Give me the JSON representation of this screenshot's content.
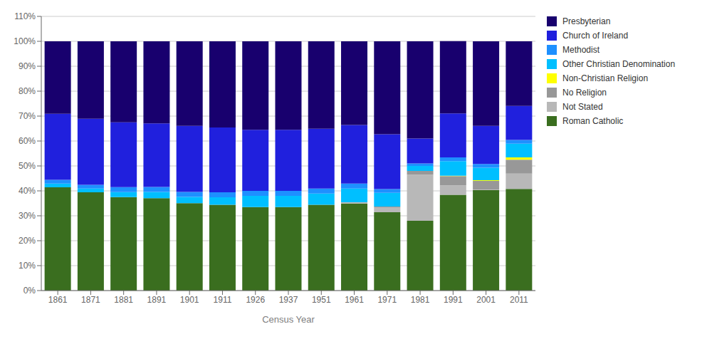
{
  "chart_data": {
    "type": "bar",
    "stacked": true,
    "xlabel": "Census Year",
    "categories": [
      "1861",
      "1871",
      "1881",
      "1891",
      "1901",
      "1911",
      "1926",
      "1937",
      "1951",
      "1961",
      "1971",
      "1981",
      "1991",
      "2001",
      "2011"
    ],
    "series": [
      {
        "name": "Roman Catholic",
        "color": "#3a6e1f",
        "values": [
          41.4,
          39.4,
          37.5,
          37.1,
          35.1,
          34.4,
          33.5,
          33.5,
          34.4,
          34.9,
          31.4,
          28.0,
          38.4,
          40.3,
          40.8
        ]
      },
      {
        "name": "Not Stated",
        "color": "#b8b8b8",
        "values": [
          0.0,
          0.0,
          0.0,
          0.0,
          0.0,
          0.0,
          0.0,
          0.0,
          0.0,
          0.5,
          2.0,
          18.5,
          3.8,
          0.2,
          6.1
        ]
      },
      {
        "name": "No Religion",
        "color": "#989898",
        "values": [
          0.0,
          0.0,
          0.0,
          0.0,
          0.0,
          0.0,
          0.0,
          0.0,
          0.0,
          0.0,
          0.3,
          1.5,
          3.7,
          3.5,
          5.6
        ]
      },
      {
        "name": "Non-Christian Religion",
        "color": "#ffff00",
        "values": [
          0.0,
          0.0,
          0.0,
          0.0,
          0.0,
          0.0,
          0.0,
          0.0,
          0.0,
          0.0,
          0.0,
          0.0,
          0.2,
          0.3,
          0.9
        ]
      },
      {
        "name": "Other Christian Denomination",
        "color": "#00bfff",
        "values": [
          1.5,
          1.5,
          2.0,
          2.5,
          2.5,
          3.0,
          4.5,
          4.5,
          4.5,
          5.5,
          5.5,
          2.0,
          5.8,
          5.0,
          5.5
        ]
      },
      {
        "name": "Methodist",
        "color": "#1e90ff",
        "values": [
          1.5,
          1.5,
          2.0,
          2.0,
          2.0,
          2.0,
          2.0,
          2.0,
          2.0,
          2.0,
          1.5,
          1.0,
          1.5,
          1.5,
          1.5
        ]
      },
      {
        "name": "Church of Ireland",
        "color": "#2020dd",
        "values": [
          26.5,
          26.5,
          26.0,
          25.5,
          26.5,
          26.0,
          24.5,
          24.5,
          24.0,
          23.5,
          22.0,
          10.0,
          17.7,
          15.3,
          13.7
        ]
      },
      {
        "name": "Presbyterian",
        "color": "#18006e",
        "values": [
          29.1,
          31.1,
          32.5,
          32.9,
          33.9,
          34.6,
          35.5,
          35.5,
          35.1,
          33.6,
          37.3,
          39.0,
          29.0,
          33.9,
          25.9
        ]
      }
    ],
    "ylim": [
      0,
      110
    ],
    "yticks": [
      {
        "value": 0,
        "label": "0%"
      },
      {
        "value": 10,
        "label": "10%"
      },
      {
        "value": 20,
        "label": "20%"
      },
      {
        "value": 30,
        "label": "30%"
      },
      {
        "value": 40,
        "label": "40%"
      },
      {
        "value": 50,
        "label": "50%"
      },
      {
        "value": 60,
        "label": "60%"
      },
      {
        "value": 70,
        "label": "70%"
      },
      {
        "value": 80,
        "label": "80%"
      },
      {
        "value": 90,
        "label": "90%"
      },
      {
        "value": 100,
        "label": "100%"
      },
      {
        "value": 110,
        "label": "110%"
      }
    ],
    "grid": true,
    "legend": "upper right"
  }
}
